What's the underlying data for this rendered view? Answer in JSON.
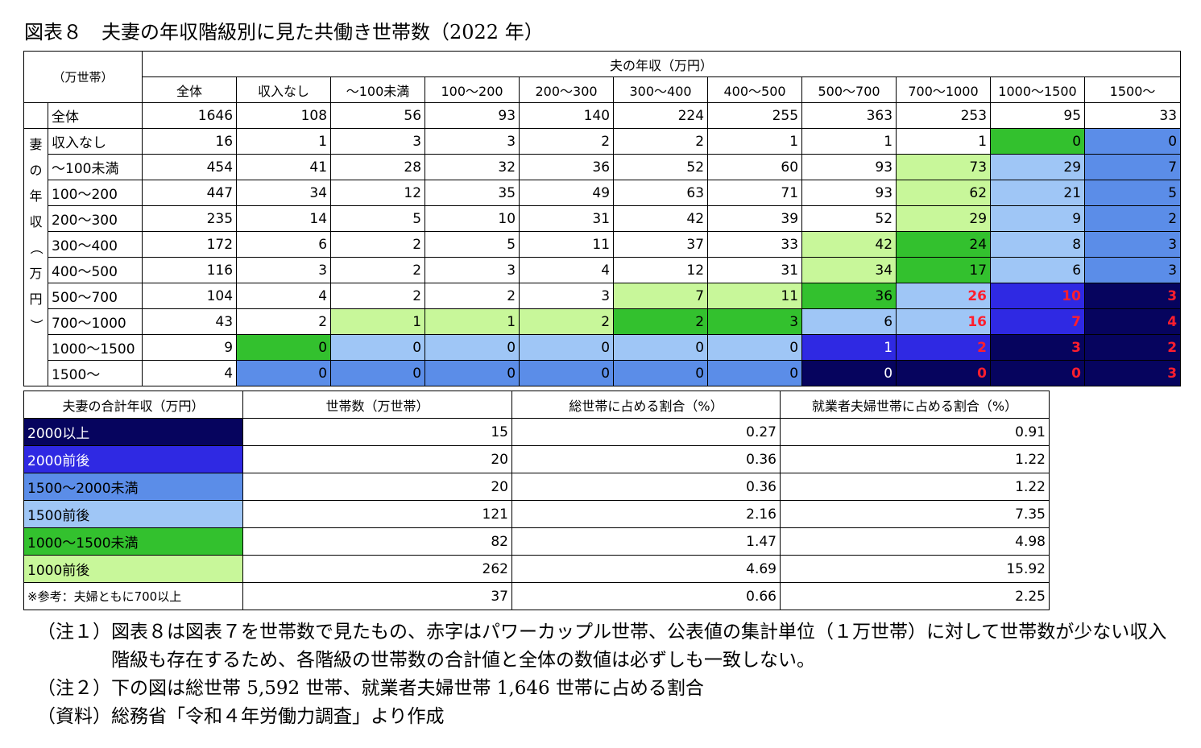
{
  "title": "図表８　夫妻の年収階級別に見た共働き世帯数（2022 年）",
  "matrix": {
    "unit_label": "（万世帯）",
    "husband_header": "夫の年収（万円）",
    "wife_side_label": "妻の年収（万円）",
    "columns": [
      "全体",
      "収入なし",
      "～100未満",
      "100～200",
      "200～300",
      "300～400",
      "400～500",
      "500～700",
      "700～1000",
      "1000～1500",
      "1500～"
    ],
    "rows": [
      {
        "label": "全体",
        "values": [
          "1646",
          "108",
          "56",
          "93",
          "140",
          "224",
          "255",
          "363",
          "253",
          "95",
          "33"
        ],
        "colors": [
          0,
          0,
          0,
          0,
          0,
          0,
          0,
          0,
          0,
          0,
          0
        ],
        "red": []
      },
      {
        "label": "収入なし",
        "values": [
          "16",
          "1",
          "3",
          "3",
          "2",
          "2",
          "1",
          "1",
          "1",
          "0",
          "0"
        ],
        "colors": [
          0,
          0,
          0,
          0,
          0,
          0,
          0,
          0,
          0,
          2,
          4
        ],
        "red": []
      },
      {
        "label": "～100未満",
        "values": [
          "454",
          "41",
          "28",
          "32",
          "36",
          "52",
          "60",
          "93",
          "73",
          "29",
          "7"
        ],
        "colors": [
          0,
          0,
          0,
          0,
          0,
          0,
          0,
          0,
          1,
          3,
          4
        ],
        "red": []
      },
      {
        "label": "100～200",
        "values": [
          "447",
          "34",
          "12",
          "35",
          "49",
          "63",
          "71",
          "93",
          "62",
          "21",
          "5"
        ],
        "colors": [
          0,
          0,
          0,
          0,
          0,
          0,
          0,
          0,
          1,
          3,
          4
        ],
        "red": []
      },
      {
        "label": "200～300",
        "values": [
          "235",
          "14",
          "5",
          "10",
          "31",
          "42",
          "39",
          "52",
          "29",
          "9",
          "2"
        ],
        "colors": [
          0,
          0,
          0,
          0,
          0,
          0,
          0,
          0,
          1,
          3,
          4
        ],
        "red": []
      },
      {
        "label": "300～400",
        "values": [
          "172",
          "6",
          "2",
          "5",
          "11",
          "37",
          "33",
          "42",
          "24",
          "8",
          "3"
        ],
        "colors": [
          0,
          0,
          0,
          0,
          0,
          0,
          0,
          1,
          2,
          3,
          4
        ],
        "red": []
      },
      {
        "label": "400～500",
        "values": [
          "116",
          "3",
          "2",
          "3",
          "4",
          "12",
          "31",
          "34",
          "17",
          "6",
          "3"
        ],
        "colors": [
          0,
          0,
          0,
          0,
          0,
          0,
          0,
          1,
          2,
          3,
          4
        ],
        "red": []
      },
      {
        "label": "500～700",
        "values": [
          "104",
          "4",
          "2",
          "2",
          "3",
          "7",
          "11",
          "36",
          "26",
          "10",
          "3"
        ],
        "colors": [
          0,
          0,
          0,
          0,
          0,
          1,
          1,
          2,
          3,
          5,
          6
        ],
        "red": [
          8,
          9,
          10
        ]
      },
      {
        "label": "700～1000",
        "values": [
          "43",
          "2",
          "1",
          "1",
          "2",
          "2",
          "3",
          "6",
          "16",
          "7",
          "4"
        ],
        "colors": [
          0,
          0,
          1,
          1,
          1,
          2,
          2,
          3,
          3,
          5,
          6
        ],
        "red": [
          8,
          9,
          10
        ]
      },
      {
        "label": "1000～1500",
        "values": [
          "9",
          "0",
          "0",
          "0",
          "0",
          "0",
          "0",
          "1",
          "2",
          "3",
          "2"
        ],
        "colors": [
          0,
          2,
          3,
          3,
          3,
          3,
          3,
          5,
          5,
          6,
          6
        ],
        "red": [
          8,
          9,
          10
        ]
      },
      {
        "label": "1500～",
        "values": [
          "4",
          "0",
          "0",
          "0",
          "0",
          "0",
          "0",
          "0",
          "0",
          "0",
          "3"
        ],
        "colors": [
          0,
          4,
          4,
          4,
          4,
          4,
          4,
          6,
          6,
          6,
          6
        ],
        "red": [
          8,
          9,
          10
        ]
      }
    ]
  },
  "summary": {
    "headers": [
      "夫妻の合計年収（万円）",
      "世帯数（万世帯）",
      "総世帯に占める割合（%）",
      "就業者夫婦世帯に占める割合（%）"
    ],
    "rows": [
      {
        "label": "2000以上",
        "color": 6,
        "households": "15",
        "share_total": "0.27",
        "share_working": "0.91"
      },
      {
        "label": "2000前後",
        "color": 5,
        "households": "20",
        "share_total": "0.36",
        "share_working": "1.22"
      },
      {
        "label": "1500～2000未満",
        "color": 4,
        "households": "20",
        "share_total": "0.36",
        "share_working": "1.22"
      },
      {
        "label": "1500前後",
        "color": 3,
        "households": "121",
        "share_total": "2.16",
        "share_working": "7.35"
      },
      {
        "label": "1000～1500未満",
        "color": 2,
        "households": "82",
        "share_total": "1.47",
        "share_working": "4.98"
      },
      {
        "label": "1000前後",
        "color": 1,
        "households": "262",
        "share_total": "4.69",
        "share_working": "15.92"
      },
      {
        "label": "※参考：夫婦ともに700以上",
        "color": 0,
        "households": "37",
        "share_total": "0.66",
        "share_working": "2.25"
      }
    ]
  },
  "palette": {
    "0": "#ffffff",
    "1": "#c8f79a",
    "2": "#33c12e",
    "3": "#9fc6f6",
    "4": "#5b8de8",
    "5": "#2f29e3",
    "6": "#06045e",
    "red_text": "#ff1e2e"
  },
  "notes": [
    {
      "key": "（注１）",
      "text": "図表８は図表７を世帯数で見たもの、赤字はパワーカップル世帯、公表値の集計単位（１万世帯）に対して世帯数が少ない収入階級も存在するため、各階級の世帯数の合計値と全体の数値は必ずしも一致しない。"
    },
    {
      "key": "（注２）",
      "text": "下の図は総世帯 5,592 世帯、就業者夫婦世帯 1,646 世帯に占める割合"
    },
    {
      "key": "（資料）",
      "text": "総務省「令和４年労働力調査」より作成"
    }
  ]
}
